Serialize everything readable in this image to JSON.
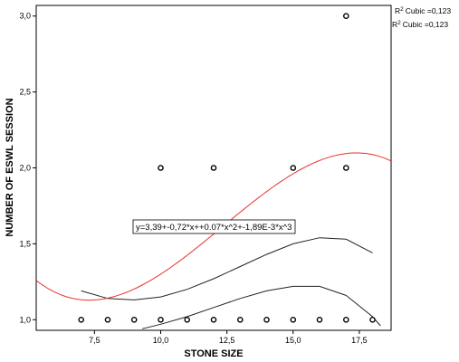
{
  "chart_data": {
    "type": "scatter",
    "title": "",
    "xlabel": "STONE SIZE",
    "ylabel": "NUMBER OF ESWL SESSION",
    "xlim": [
      5.3,
      18.7
    ],
    "ylim": [
      0.93,
      3.07
    ],
    "x_ticks": [
      "7,5",
      "10,0",
      "12,5",
      "15,0",
      "17,5"
    ],
    "x_tick_values": [
      7.5,
      10.0,
      12.5,
      15.0,
      17.5
    ],
    "y_ticks": [
      "1,0",
      "1,5",
      "2,0",
      "2,5",
      "3,0"
    ],
    "y_tick_values": [
      1.0,
      1.5,
      2.0,
      2.5,
      3.0
    ],
    "grid": false,
    "legend": {
      "placement": "top-right",
      "entries": [
        "Cubic =0,123",
        "Cubic =0,123"
      ],
      "prefix": "R² "
    },
    "equation_label": "y=3,39+-0,72*x++0.07*x^2+-1,89E-3*x^3",
    "points": [
      {
        "x": 7,
        "y": 1
      },
      {
        "x": 8,
        "y": 1
      },
      {
        "x": 9,
        "y": 1
      },
      {
        "x": 10,
        "y": 1
      },
      {
        "x": 11,
        "y": 1
      },
      {
        "x": 12,
        "y": 1
      },
      {
        "x": 13,
        "y": 1
      },
      {
        "x": 14,
        "y": 1
      },
      {
        "x": 15,
        "y": 1
      },
      {
        "x": 16,
        "y": 1
      },
      {
        "x": 17,
        "y": 1
      },
      {
        "x": 18,
        "y": 1
      },
      {
        "x": 10,
        "y": 2
      },
      {
        "x": 12,
        "y": 2
      },
      {
        "x": 15,
        "y": 2
      },
      {
        "x": 17,
        "y": 2
      },
      {
        "x": 17,
        "y": 3
      }
    ],
    "fit": {
      "name": "Cubic",
      "coefficients": [
        3.39,
        -0.72,
        0.07,
        -0.00189
      ],
      "x_range": [
        5.3,
        18.7
      ],
      "color": "#e8322a"
    },
    "confidence_band": {
      "color": "#222222",
      "upper": [
        [
          7,
          1.19
        ],
        [
          8,
          1.14
        ],
        [
          9,
          1.13
        ],
        [
          10,
          1.15
        ],
        [
          11,
          1.2
        ],
        [
          12,
          1.27
        ],
        [
          13,
          1.35
        ],
        [
          14,
          1.43
        ],
        [
          15,
          1.5
        ],
        [
          16,
          1.54
        ],
        [
          17,
          1.53
        ],
        [
          18,
          1.44
        ]
      ],
      "lower": [
        [
          9.3,
          0.94
        ],
        [
          10,
          0.97
        ],
        [
          11,
          1.02
        ],
        [
          12,
          1.08
        ],
        [
          13,
          1.14
        ],
        [
          14,
          1.19
        ],
        [
          15,
          1.22
        ],
        [
          16,
          1.22
        ],
        [
          17,
          1.16
        ],
        [
          18,
          1.02
        ],
        [
          18.3,
          0.96
        ]
      ]
    }
  }
}
